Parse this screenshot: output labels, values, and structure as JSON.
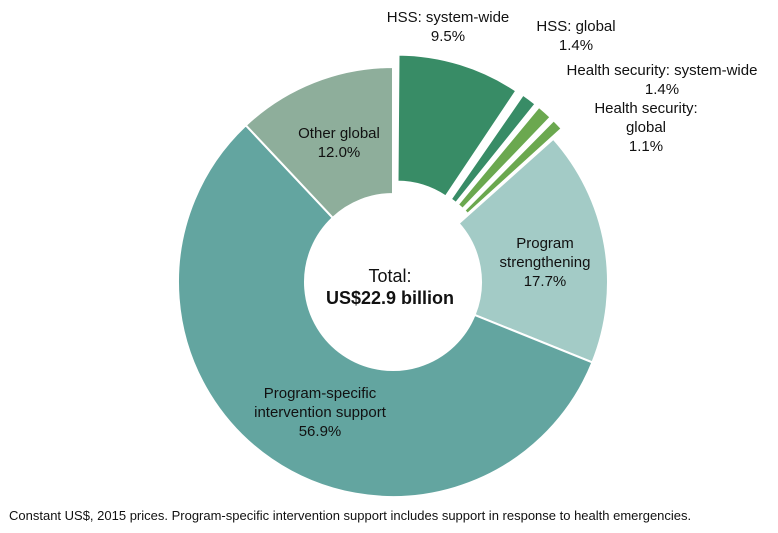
{
  "chart_data": {
    "type": "pie",
    "donut": true,
    "center_text": {
      "title": "Total:",
      "value": "US$22.9 billion"
    },
    "slices": [
      {
        "label": [
          "HSS: system-wide",
          "9.5%"
        ],
        "value": 9.5,
        "color": "#388c66",
        "exploded": true
      },
      {
        "label": [
          "HSS: global",
          "1.4%"
        ],
        "value": 1.4,
        "color": "#388c66",
        "exploded": true
      },
      {
        "label": [
          "Health security: system-wide",
          "1.4%"
        ],
        "value": 1.4,
        "color": "#6ba84f",
        "exploded": true
      },
      {
        "label": [
          "Health security:",
          "global",
          "1.1%"
        ],
        "value": 1.1,
        "color": "#6ba84f",
        "exploded": true
      },
      {
        "label": [
          "Program",
          "strengthening",
          "17.7%"
        ],
        "value": 17.7,
        "color": "#a3cbc6",
        "exploded": false
      },
      {
        "label": [
          "Program-specific",
          "intervention support",
          "56.9%"
        ],
        "value": 56.9,
        "color": "#63a5a0",
        "exploded": false
      },
      {
        "label": [
          "Other global",
          "12.0%"
        ],
        "value": 12.0,
        "color": "#8eae9b",
        "exploded": false
      }
    ],
    "footnote": "Constant US$, 2015 prices. Program-specific intervention support includes support in response to health emergencies."
  }
}
